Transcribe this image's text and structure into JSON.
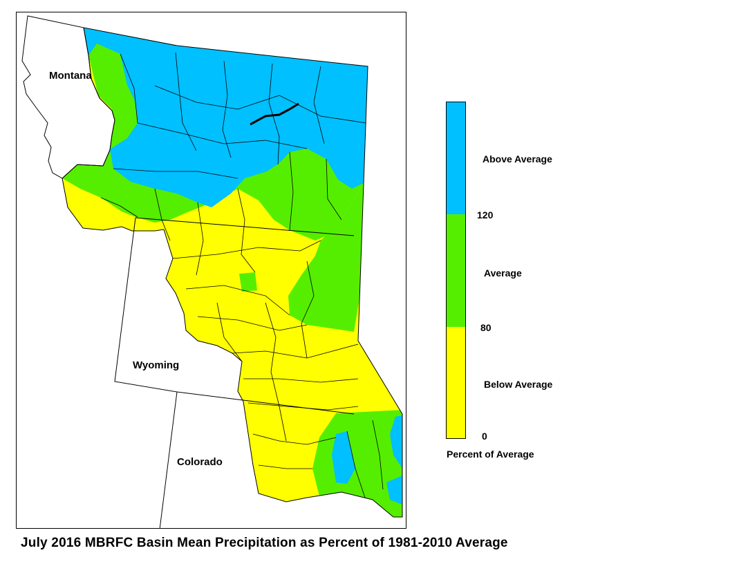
{
  "map": {
    "states": {
      "montana": "Montana",
      "wyoming": "Wyoming",
      "colorado": "Colorado"
    },
    "colors": {
      "above": "#00c0ff",
      "average": "#55ee00",
      "below": "#ffff00",
      "boundary": "#000000"
    }
  },
  "legend": {
    "title": "Percent of Average",
    "categories": [
      {
        "label": "Above Average",
        "color": "#00c0ff",
        "min": 120
      },
      {
        "label": "Average",
        "color": "#55ee00",
        "min": 80,
        "max": 120
      },
      {
        "label": "Below Average",
        "color": "#ffff00",
        "min": 0,
        "max": 80
      }
    ],
    "ticks": [
      "120",
      "80",
      "0"
    ]
  },
  "caption": "July 2016 MBRFC Basin Mean Precipitation as Percent of 1981-2010 Average"
}
